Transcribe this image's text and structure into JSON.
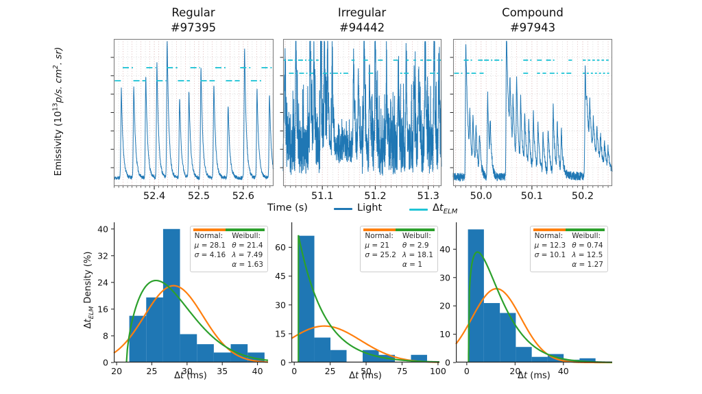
{
  "colors": {
    "signal": "#1f77b4",
    "elm": "#20c4d6",
    "bars": "#1f77b4",
    "normal_fit": "#ff7f0e",
    "weibull_fit": "#2ca02c",
    "grid_minor": "#cfcfcf",
    "grid_major": "#d2a3a3",
    "spine_top": "#7f7f7f",
    "spine_bottom": "#262626",
    "text": "#1a1a1a"
  },
  "chart_data": {
    "top_row": {
      "type": "line",
      "ylabel": {
        "pre": "Emissivity (10",
        "exp": "13",
        "mid": "p/s. cm",
        "exp2": "2",
        "tail": ". sr)"
      },
      "xlabel": "Time (s)",
      "legend": {
        "light": "Light",
        "elm_delta": "Δ",
        "elm_t": "t",
        "elm_sub": "ELM"
      },
      "charts": [
        {
          "title1": "Regular",
          "title2": "#97395",
          "xlim": [
            52.309,
            52.668
          ],
          "xticks": [
            52.4,
            52.5,
            52.6
          ],
          "xtick_labels": [
            "52.4",
            "52.5",
            "52.6"
          ],
          "minor_step": 0.01,
          "baseline": 0.055,
          "noise": 0.013,
          "spike_noise": 0,
          "seed": 11,
          "samples": 1000,
          "rise": 0.0011,
          "fall": 0.004,
          "peaks": [
            [
              52.326,
              0.61
            ],
            [
              52.354,
              0.63
            ],
            [
              52.381,
              0.7
            ],
            [
              52.406,
              0.78
            ],
            [
              52.429,
              0.95
            ],
            [
              52.457,
              0.55
            ],
            [
              52.478,
              0.59
            ],
            [
              52.505,
              0.76
            ],
            [
              52.534,
              0.65
            ],
            [
              52.566,
              0.5
            ],
            [
              52.603,
              0.89
            ],
            [
              52.631,
              0.6
            ],
            [
              52.659,
              0.57
            ]
          ],
          "elm_levels": {
            "hi": 0.805,
            "lo": 0.716
          },
          "elm_dash": "9 4",
          "elm_segments": [
            [
              52.311,
              52.328,
              "lo"
            ],
            [
              52.329,
              52.352,
              "hi"
            ],
            [
              52.353,
              52.381,
              "lo"
            ],
            [
              52.382,
              52.404,
              "hi"
            ],
            [
              52.405,
              52.427,
              "lo"
            ],
            [
              52.428,
              52.452,
              "hi"
            ],
            [
              52.453,
              52.48,
              "lo"
            ],
            [
              52.481,
              52.503,
              "hi"
            ],
            [
              52.504,
              52.536,
              "lo"
            ],
            [
              52.537,
              52.56,
              "hi"
            ],
            [
              52.561,
              52.592,
              "lo"
            ],
            [
              52.593,
              52.616,
              "hi"
            ],
            [
              52.617,
              52.64,
              "lo"
            ],
            [
              52.641,
              52.664,
              "hi"
            ]
          ]
        },
        {
          "title1": "Irregular",
          "title2": "#94442",
          "xlim": [
            51.026,
            51.325
          ],
          "xticks": [
            51.1,
            51.2,
            51.3
          ],
          "xtick_labels": [
            "51.1",
            "51.2",
            "51.3"
          ],
          "minor_step": 0.01,
          "baseline": 0.24,
          "noise": 0.17,
          "spike_noise": 0.38,
          "seed": 23,
          "samples": 1300,
          "rise": 0.0007,
          "fall": 0.0018,
          "noise_profile": [
            [
              51.121,
              51.175,
              0.5
            ]
          ],
          "peaks": [
            [
              51.029,
              0.5
            ],
            [
              51.05,
              0.84
            ],
            [
              51.077,
              0.9
            ],
            [
              51.084,
              0.76
            ],
            [
              51.097,
              0.73
            ],
            [
              51.104,
              0.78
            ],
            [
              51.11,
              0.7
            ],
            [
              51.119,
              0.45
            ],
            [
              51.159,
              0.62
            ],
            [
              51.168,
              0.55
            ],
            [
              51.179,
              0.86
            ],
            [
              51.189,
              0.5
            ],
            [
              51.2,
              0.88
            ],
            [
              51.221,
              0.55
            ],
            [
              51.243,
              0.48
            ],
            [
              51.258,
              0.58
            ],
            [
              51.273,
              0.5
            ],
            [
              51.282,
              0.55
            ],
            [
              51.294,
              0.84
            ],
            [
              51.311,
              0.78
            ],
            [
              51.32,
              0.55
            ]
          ],
          "elm_levels": {
            "hi": 0.856,
            "lo": 0.767
          },
          "elm_dash": "7 3 2 3",
          "elm_segments": [
            [
              51.026,
              51.031,
              "hi"
            ],
            [
              51.035,
              51.082,
              "hi"
            ],
            [
              51.037,
              51.083,
              "lo"
            ],
            [
              51.088,
              51.093,
              "hi"
            ],
            [
              51.101,
              51.152,
              "lo"
            ],
            [
              51.155,
              51.161,
              "hi"
            ],
            [
              51.177,
              51.187,
              "hi"
            ],
            [
              51.187,
              51.197,
              "lo"
            ],
            [
              51.205,
              51.215,
              "hi"
            ],
            [
              51.234,
              51.244,
              "hi"
            ],
            [
              51.247,
              51.251,
              "lo"
            ],
            [
              51.254,
              51.264,
              "lo"
            ],
            [
              51.258,
              51.263,
              "hi"
            ],
            [
              51.272,
              51.277,
              "hi"
            ],
            [
              51.285,
              51.29,
              "hi"
            ],
            [
              51.297,
              51.318,
              "hi"
            ],
            [
              51.303,
              51.322,
              "lo"
            ],
            [
              51.321,
              51.325,
              "hi"
            ]
          ]
        },
        {
          "title1": "Compound",
          "title2": "#97943",
          "xlim": [
            49.945,
            50.258
          ],
          "xticks": [
            50.0,
            50.1,
            50.2
          ],
          "xtick_labels": [
            "50.0",
            "50.1",
            "50.2"
          ],
          "minor_step": 0.01,
          "baseline": 0.06,
          "noise": 0.03,
          "spike_noise": 0,
          "seed": 37,
          "samples": 1100,
          "rise": 0.0008,
          "fall": 0.003,
          "peaks": [
            [
              49.97,
              0.93,
              0.0045
            ],
            [
              49.978,
              0.3
            ],
            [
              49.984,
              0.34
            ],
            [
              49.99,
              0.3
            ],
            [
              49.997,
              0.27
            ],
            [
              50.013,
              0.57
            ],
            [
              50.018,
              0.3
            ],
            [
              50.05,
              0.88,
              0.0045
            ],
            [
              50.05,
              0.13,
              0.05
            ],
            [
              50.057,
              0.38
            ],
            [
              50.063,
              0.35
            ],
            [
              50.07,
              0.54
            ],
            [
              50.078,
              0.42
            ],
            [
              50.086,
              0.34
            ],
            [
              50.094,
              0.3
            ],
            [
              50.103,
              0.37
            ],
            [
              50.112,
              0.31
            ],
            [
              50.122,
              0.27
            ],
            [
              50.132,
              0.3
            ],
            [
              50.142,
              0.45
            ],
            [
              50.15,
              0.33
            ],
            [
              50.158,
              0.28
            ],
            [
              50.205,
              0.75,
              0.004
            ],
            [
              50.208,
              0.2,
              0.035
            ],
            [
              50.214,
              0.27
            ],
            [
              50.221,
              0.22
            ],
            [
              50.228,
              0.19
            ],
            [
              50.235,
              0.17
            ],
            [
              50.243,
              0.14
            ],
            [
              50.25,
              0.12
            ]
          ],
          "elm_levels": {
            "hi": 0.856,
            "lo": 0.767
          },
          "elm_dash": "7 3 2 3",
          "elm_segments": [
            [
              49.947,
              49.967,
              "lo"
            ],
            [
              49.966,
              49.985,
              "hi"
            ],
            [
              49.972,
              49.977,
              "lo"
            ],
            [
              49.981,
              49.99,
              "lo"
            ],
            [
              49.994,
              50.003,
              "hi"
            ],
            [
              49.997,
              50.005,
              "lo"
            ],
            [
              50.006,
              50.042,
              "hi"
            ],
            [
              50.083,
              50.102,
              "hi"
            ],
            [
              50.083,
              50.093,
              "lo"
            ],
            [
              50.11,
              50.123,
              "hi"
            ],
            [
              50.11,
              50.116,
              "lo"
            ],
            [
              50.121,
              50.128,
              "lo"
            ],
            [
              50.128,
              50.145,
              "hi"
            ],
            [
              50.135,
              50.152,
              "lo"
            ],
            [
              50.158,
              50.164,
              "lo"
            ],
            [
              50.168,
              50.178,
              "lo"
            ],
            [
              50.172,
              50.179,
              "hi"
            ],
            [
              50.2,
              50.206,
              "hi"
            ],
            [
              50.21,
              50.215,
              "hi"
            ],
            [
              50.219,
              50.224,
              "hi"
            ],
            [
              50.228,
              50.233,
              "hi"
            ],
            [
              50.237,
              50.242,
              "hi"
            ],
            [
              50.246,
              50.251,
              "hi"
            ],
            [
              50.2,
              50.204,
              "lo"
            ],
            [
              50.208,
              50.212,
              "lo"
            ],
            [
              50.216,
              50.22,
              "lo"
            ],
            [
              50.224,
              50.228,
              "lo"
            ],
            [
              50.232,
              50.236,
              "lo"
            ],
            [
              50.24,
              50.244,
              "lo"
            ],
            [
              50.248,
              50.252,
              "lo"
            ]
          ]
        }
      ]
    },
    "bottom_row": {
      "type": "bar",
      "ylabel": {
        "delta": "Δ",
        "t": "t",
        "sub": "ELM",
        "rest": " Density (%)"
      },
      "xlabel": {
        "delta": "Δ",
        "t": "t",
        "rest": " (ms)"
      },
      "charts": [
        {
          "ylim": [
            0,
            42
          ],
          "yticks": [
            0,
            8,
            16,
            24,
            32,
            40
          ],
          "xlim": [
            19.6,
            41.5
          ],
          "xticks": [
            20,
            25,
            30,
            35,
            40
          ],
          "bin_start": 21.8,
          "bin_width": 2.4,
          "curve_scale": 2.4,
          "heights": [
            14,
            19.5,
            40,
            8.5,
            5.5,
            3,
            5.5,
            3
          ],
          "normal": {
            "mu": 28.1,
            "sigma": 4.16
          },
          "weibull": {
            "theta": 21.4,
            "lambda": 7.49,
            "alpha": 1.63
          },
          "legend": {
            "normal_title": "Normal:",
            "normal_lines": [
              "μ = 28.1",
              "σ = 4.16"
            ],
            "weibull_title": "Weibull:",
            "weibull_lines": [
              "θ = 21.4",
              "λ = 7.49",
              "α = 1.63"
            ],
            "right": 0
          }
        },
        {
          "ylim": [
            0,
            73
          ],
          "yticks": [
            0,
            15,
            30,
            45,
            60
          ],
          "xlim": [
            -2,
            101
          ],
          "xticks": [
            0,
            25,
            50,
            75,
            100
          ],
          "bin_start": 2.8,
          "bin_width": 11.2,
          "curve_scale": 12,
          "heights": [
            66,
            13,
            6.5,
            0,
            6.5,
            4,
            0,
            4,
            0
          ],
          "normal": {
            "mu": 21,
            "sigma": 25.2
          },
          "weibull": {
            "theta": 2.9,
            "lambda": 18.1,
            "alpha": 1
          },
          "legend": {
            "normal_title": "Normal:",
            "normal_lines": [
              "μ = 21",
              "σ = 25.2"
            ],
            "weibull_title": "Weibull:",
            "weibull_lines": [
              "θ = 2.9",
              "λ = 18.1",
              "α = 1"
            ],
            "right": 2
          }
        },
        {
          "ylim": [
            0,
            49.5
          ],
          "yticks": [
            0,
            10,
            20,
            30,
            40
          ],
          "xlim": [
            -4.5,
            60.2
          ],
          "xticks": [
            0,
            20,
            40
          ],
          "bin_start": 0.5,
          "bin_width": 6.6,
          "curve_scale": 6.6,
          "heights": [
            47,
            21,
            17.5,
            5.5,
            2,
            3,
            1,
            1.5
          ],
          "normal": {
            "mu": 12.3,
            "sigma": 10.1
          },
          "weibull": {
            "theta": 0.74,
            "lambda": 12.5,
            "alpha": 1.27
          },
          "legend": {
            "normal_title": "Normal:",
            "normal_lines": [
              "μ = 12.3",
              "σ = 10.1"
            ],
            "weibull_title": "Weibull:",
            "weibull_lines": [
              "θ = 0.74",
              "λ = 12.5",
              "α = 1.27"
            ],
            "right": 6
          }
        }
      ]
    }
  }
}
